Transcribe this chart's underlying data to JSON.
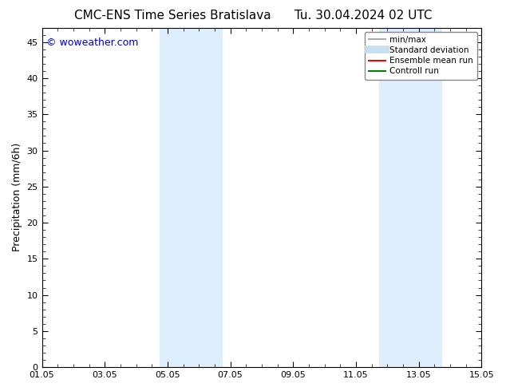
{
  "title_left": "CMC-ENS Time Series Bratislava",
  "title_right": "Tu. 30.04.2024 02 UTC",
  "ylabel": "Precipitation (mm/6h)",
  "ylim": [
    0,
    47
  ],
  "yticks": [
    0,
    5,
    10,
    15,
    20,
    25,
    30,
    35,
    40,
    45
  ],
  "xtick_labels": [
    "01.05",
    "03.05",
    "05.05",
    "07.05",
    "09.05",
    "11.05",
    "13.05",
    "15.05"
  ],
  "xtick_positions": [
    0,
    2,
    4,
    6,
    8,
    10,
    12,
    14
  ],
  "xlim": [
    0,
    14
  ],
  "shaded_regions": [
    {
      "xstart": 3.75,
      "xend": 5.75,
      "color": "#ddeeff",
      "alpha": 1.0
    },
    {
      "xstart": 10.75,
      "xend": 12.75,
      "color": "#ddeeff",
      "alpha": 1.0
    }
  ],
  "legend_items": [
    {
      "label": "min/max",
      "color": "#aaaaaa",
      "lw": 1.5
    },
    {
      "label": "Standard deviation",
      "color": "#c8dff0",
      "lw": 7
    },
    {
      "label": "Ensemble mean run",
      "color": "#ff0000",
      "lw": 1.5
    },
    {
      "label": "Controll run",
      "color": "#008000",
      "lw": 1.5
    }
  ],
  "watermark_text": "© woweather.com",
  "watermark_color": "#0000cc",
  "watermark_fontsize": 9,
  "title_fontsize": 11,
  "ylabel_fontsize": 9,
  "tick_fontsize": 8,
  "legend_fontsize": 7.5,
  "background_color": "#ffffff",
  "plot_bg_color": "#ffffff",
  "tick_color": "#000000"
}
